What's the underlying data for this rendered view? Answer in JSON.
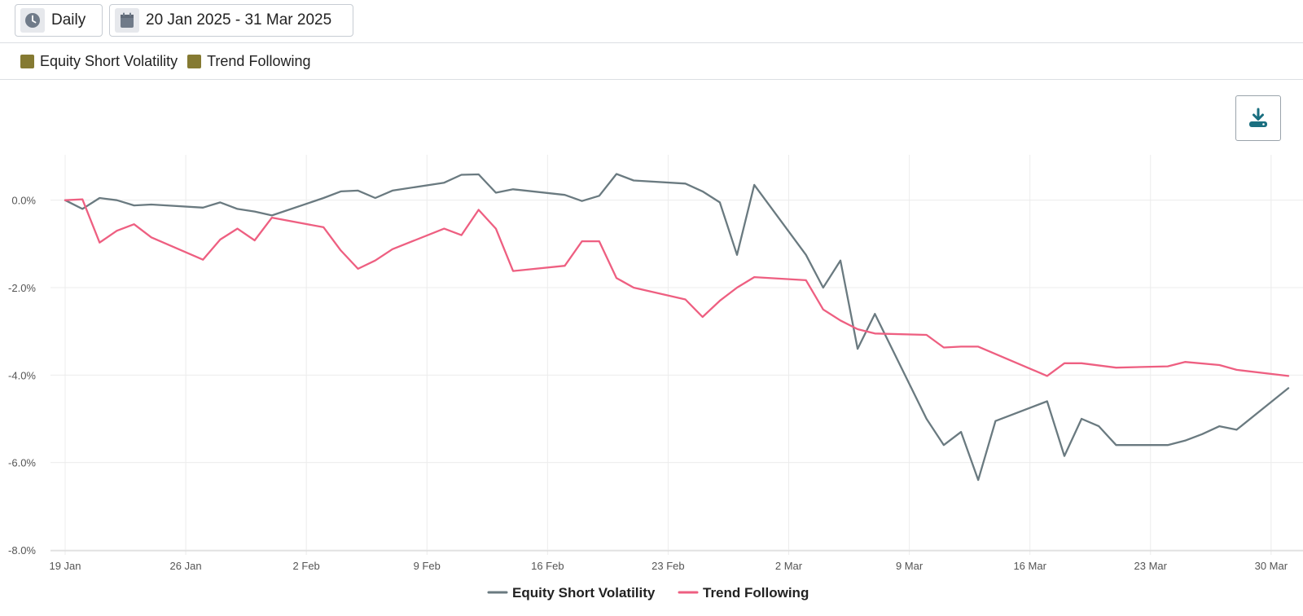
{
  "toolbar": {
    "frequency_label": "Daily",
    "frequency_icon": "clock-icon",
    "date_range_label": "20 Jan 2025 - 31 Mar 2025",
    "date_range_icon": "calendar-icon"
  },
  "filter_legend": [
    {
      "label": "Equity Short Volatility",
      "color": "#857a32"
    },
    {
      "label": "Trend Following",
      "color": "#857a32"
    }
  ],
  "download_icon": "download-icon",
  "chart_data": {
    "type": "line",
    "x_ticks": [
      "19 Jan",
      "26 Jan",
      "2 Feb",
      "9 Feb",
      "16 Feb",
      "23 Feb",
      "2 Mar",
      "9 Mar",
      "16 Mar",
      "23 Mar",
      "30 Mar"
    ],
    "y_ticks": [
      "0.0%",
      "-2.0%",
      "-4.0%",
      "-6.0%",
      "-8.0%"
    ],
    "xlim": [
      "2025-01-19",
      "2025-03-31"
    ],
    "ylim": [
      -8.0,
      1.0
    ],
    "grid": true,
    "legend_position": "bottom",
    "series": [
      {
        "name": "Equity Short Volatility",
        "color": "#6a7a80",
        "points": [
          [
            "2025-01-19",
            0.0
          ],
          [
            "2025-01-20",
            -0.2
          ],
          [
            "2025-01-21",
            0.05
          ],
          [
            "2025-01-22",
            0.0
          ],
          [
            "2025-01-23",
            -0.12
          ],
          [
            "2025-01-24",
            -0.1
          ],
          [
            "2025-01-27",
            -0.17
          ],
          [
            "2025-01-28",
            -0.05
          ],
          [
            "2025-01-29",
            -0.2
          ],
          [
            "2025-01-30",
            -0.26
          ],
          [
            "2025-01-31",
            -0.35
          ],
          [
            "2025-02-03",
            0.05
          ],
          [
            "2025-02-04",
            0.2
          ],
          [
            "2025-02-05",
            0.22
          ],
          [
            "2025-02-06",
            0.05
          ],
          [
            "2025-02-07",
            0.22
          ],
          [
            "2025-02-10",
            0.4
          ],
          [
            "2025-02-11",
            0.58
          ],
          [
            "2025-02-12",
            0.59
          ],
          [
            "2025-02-13",
            0.17
          ],
          [
            "2025-02-14",
            0.25
          ],
          [
            "2025-02-17",
            0.12
          ],
          [
            "2025-02-18",
            -0.02
          ],
          [
            "2025-02-19",
            0.1
          ],
          [
            "2025-02-20",
            0.6
          ],
          [
            "2025-02-21",
            0.45
          ],
          [
            "2025-02-24",
            0.38
          ],
          [
            "2025-02-25",
            0.2
          ],
          [
            "2025-02-26",
            -0.05
          ],
          [
            "2025-02-27",
            -1.25
          ],
          [
            "2025-02-28",
            0.35
          ],
          [
            "2025-03-03",
            -1.25
          ],
          [
            "2025-03-04",
            -2.0
          ],
          [
            "2025-03-05",
            -1.38
          ],
          [
            "2025-03-06",
            -3.4
          ],
          [
            "2025-03-07",
            -2.6
          ],
          [
            "2025-03-10",
            -5.0
          ],
          [
            "2025-03-11",
            -5.6
          ],
          [
            "2025-03-12",
            -5.3
          ],
          [
            "2025-03-13",
            -6.4
          ],
          [
            "2025-03-14",
            -5.05
          ],
          [
            "2025-03-17",
            -4.6
          ],
          [
            "2025-03-18",
            -5.85
          ],
          [
            "2025-03-19",
            -5.0
          ],
          [
            "2025-03-20",
            -5.17
          ],
          [
            "2025-03-21",
            -5.6
          ],
          [
            "2025-03-24",
            -5.6
          ],
          [
            "2025-03-25",
            -5.5
          ],
          [
            "2025-03-26",
            -5.35
          ],
          [
            "2025-03-27",
            -5.17
          ],
          [
            "2025-03-28",
            -5.25
          ],
          [
            "2025-03-31",
            -4.3
          ]
        ]
      },
      {
        "name": "Trend Following",
        "color": "#ee5f81",
        "points": [
          [
            "2025-01-19",
            0.0
          ],
          [
            "2025-01-20",
            0.02
          ],
          [
            "2025-01-21",
            -0.97
          ],
          [
            "2025-01-22",
            -0.7
          ],
          [
            "2025-01-23",
            -0.55
          ],
          [
            "2025-01-24",
            -0.85
          ],
          [
            "2025-01-27",
            -1.36
          ],
          [
            "2025-01-28",
            -0.9
          ],
          [
            "2025-01-29",
            -0.65
          ],
          [
            "2025-01-30",
            -0.92
          ],
          [
            "2025-01-31",
            -0.4
          ],
          [
            "2025-02-03",
            -0.62
          ],
          [
            "2025-02-04",
            -1.15
          ],
          [
            "2025-02-05",
            -1.57
          ],
          [
            "2025-02-06",
            -1.38
          ],
          [
            "2025-02-07",
            -1.12
          ],
          [
            "2025-02-10",
            -0.65
          ],
          [
            "2025-02-11",
            -0.8
          ],
          [
            "2025-02-12",
            -0.22
          ],
          [
            "2025-02-13",
            -0.65
          ],
          [
            "2025-02-14",
            -1.62
          ],
          [
            "2025-02-17",
            -1.5
          ],
          [
            "2025-02-18",
            -0.94
          ],
          [
            "2025-02-19",
            -0.94
          ],
          [
            "2025-02-20",
            -1.78
          ],
          [
            "2025-02-21",
            -2.0
          ],
          [
            "2025-02-24",
            -2.27
          ],
          [
            "2025-02-25",
            -2.67
          ],
          [
            "2025-02-26",
            -2.3
          ],
          [
            "2025-02-27",
            -2.0
          ],
          [
            "2025-02-28",
            -1.76
          ],
          [
            "2025-03-03",
            -1.83
          ],
          [
            "2025-03-04",
            -2.5
          ],
          [
            "2025-03-05",
            -2.75
          ],
          [
            "2025-03-06",
            -2.95
          ],
          [
            "2025-03-07",
            -3.05
          ],
          [
            "2025-03-10",
            -3.08
          ],
          [
            "2025-03-11",
            -3.37
          ],
          [
            "2025-03-12",
            -3.35
          ],
          [
            "2025-03-13",
            -3.35
          ],
          [
            "2025-03-17",
            -4.02
          ],
          [
            "2025-03-18",
            -3.73
          ],
          [
            "2025-03-19",
            -3.73
          ],
          [
            "2025-03-21",
            -3.83
          ],
          [
            "2025-03-24",
            -3.8
          ],
          [
            "2025-03-25",
            -3.7
          ],
          [
            "2025-03-27",
            -3.77
          ],
          [
            "2025-03-28",
            -3.88
          ],
          [
            "2025-03-31",
            -4.02
          ]
        ]
      }
    ]
  }
}
